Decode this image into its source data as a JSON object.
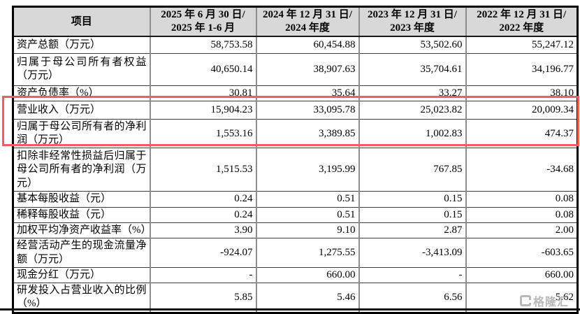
{
  "table": {
    "headers": [
      {
        "line1": "项目",
        "line2": ""
      },
      {
        "line1": "2025 年 6 月 30 日/",
        "line2": "2025 年 1-6 月"
      },
      {
        "line1": "2024 年 12 月 31 日/",
        "line2": "2024 年度"
      },
      {
        "line1": "2023 年 12 月 31 日/",
        "line2": "2023 年度"
      },
      {
        "line1": "2022 年 12 月 31 日/",
        "line2": "2022 年度"
      }
    ],
    "rows": [
      {
        "label": "资产总额（万元）",
        "values": [
          "58,753.58",
          "60,454.88",
          "53,502.60",
          "55,247.12"
        ],
        "highlighted": false
      },
      {
        "label": "归属于母公司所有者权益（万元）",
        "values": [
          "40,650.14",
          "38,907.63",
          "35,704.61",
          "34,196.77"
        ],
        "highlighted": false
      },
      {
        "label": "资产负债率（%）",
        "values": [
          "30.81",
          "35.64",
          "33.27",
          "38.10"
        ],
        "highlighted": false
      },
      {
        "label": "营业收入（万元）",
        "values": [
          "15,904.23",
          "33,095.78",
          "25,023.82",
          "20,009.34"
        ],
        "highlighted": true
      },
      {
        "label": "归属于母公司所有者的净利润（万元）",
        "values": [
          "1,553.16",
          "3,389.85",
          "1,002.83",
          "474.37"
        ],
        "highlighted": true
      },
      {
        "label": "扣除非经常性损益后归属于母公司所有者的净利润（万元）",
        "values": [
          "1,515.53",
          "3,195.99",
          "767.85",
          "-34.68"
        ],
        "highlighted": false
      },
      {
        "label": "基本每股收益（元）",
        "values": [
          "0.24",
          "0.51",
          "0.15",
          "0.08"
        ],
        "highlighted": false
      },
      {
        "label": "稀释每股收益（元）",
        "values": [
          "0.24",
          "0.51",
          "0.15",
          "0.08"
        ],
        "highlighted": false
      },
      {
        "label": "加权平均净资产收益率（%）",
        "values": [
          "3.90",
          "9.10",
          "2.87",
          "2.00"
        ],
        "highlighted": false
      },
      {
        "label": "经营活动产生的现金流量净额（万元）",
        "values": [
          "-924.07",
          "1,275.55",
          "-3,413.09",
          "-603.65"
        ],
        "highlighted": false
      },
      {
        "label": "现金分红（万元）",
        "values": [
          "-",
          "660.00",
          "-",
          "660.00"
        ],
        "highlighted": false
      },
      {
        "label": "研发投入占营业收入的比例（%）",
        "values": [
          "5.85",
          "5.46",
          "6.56",
          "5.62"
        ],
        "highlighted": false
      }
    ]
  },
  "watermark": {
    "logo": "gelonghui-logo",
    "text": "格隆汇"
  },
  "colors": {
    "header_bg": "#d8d8d8",
    "highlight_border": "#ec615f",
    "watermark": "#b9b9b9",
    "outer_border": "#000000",
    "inner_vertical_border": "#8e8e8e",
    "inner_horizontal_border": "#3c3c3c"
  }
}
